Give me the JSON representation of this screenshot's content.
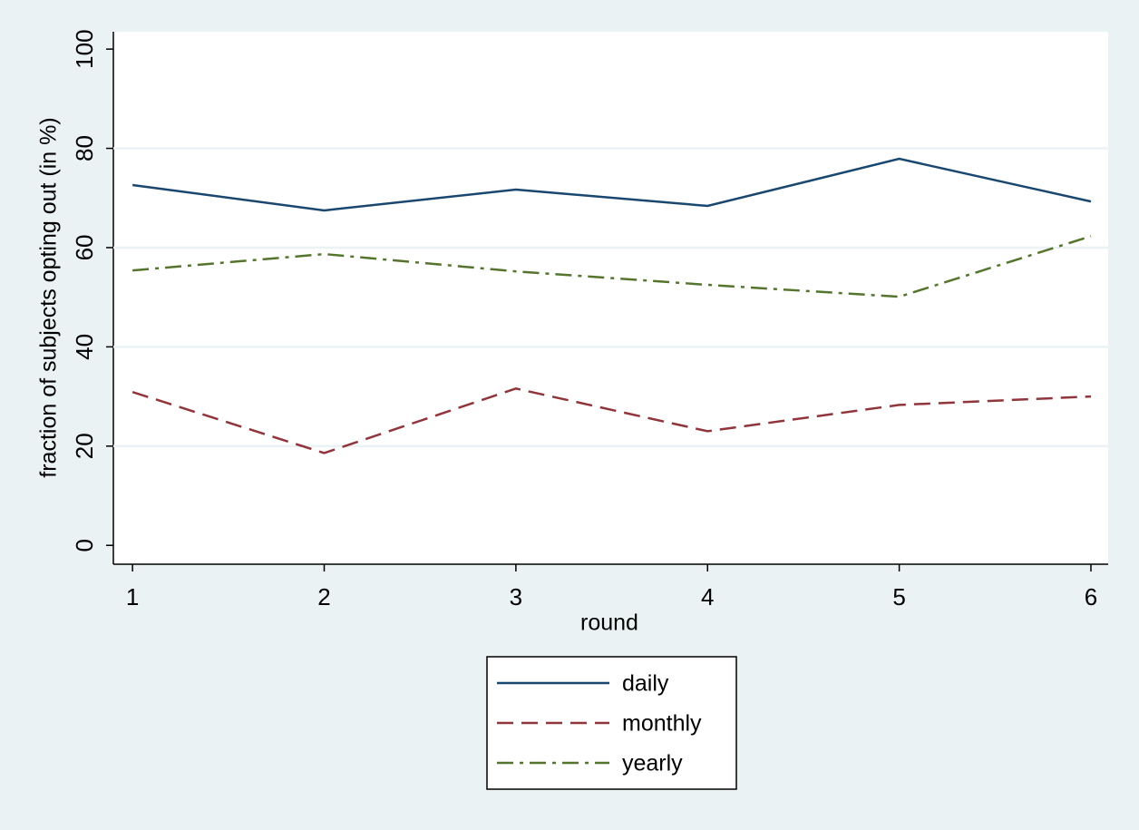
{
  "chart_data": {
    "type": "line",
    "x_label": "round",
    "y_label": "fraction of subjects opting out (in %)",
    "x": [
      1,
      2,
      3,
      4,
      5,
      6
    ],
    "series": [
      {
        "name": "daily",
        "color": "#1a476f",
        "linestyle": "solid",
        "values": [
          72.6,
          67.5,
          71.7,
          68.4,
          77.9,
          69.3
        ]
      },
      {
        "name": "monthly",
        "color": "#90353b",
        "linestyle": "dashed",
        "values": [
          30.9,
          18.6,
          31.6,
          23.0,
          28.3,
          30.0
        ]
      },
      {
        "name": "yearly",
        "color": "#55752f",
        "linestyle": "dashdot",
        "values": [
          55.4,
          58.7,
          55.2,
          52.5,
          50.1,
          62.3
        ]
      }
    ],
    "xlim": [
      0.9,
      6.09
    ],
    "xticks": [
      1,
      2,
      3,
      4,
      5,
      6
    ],
    "ylim": [
      -3.8,
      103.5
    ],
    "yticks": [
      0,
      20,
      40,
      60,
      80,
      100
    ],
    "grid": true,
    "legend": "bottom"
  }
}
